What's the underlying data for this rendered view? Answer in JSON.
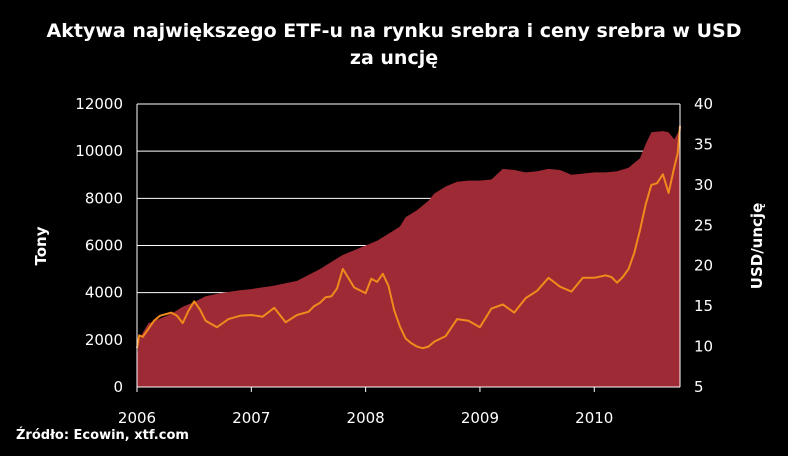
{
  "chart_data": {
    "type": "area",
    "title": "Aktywa największego ETF-u na rynku srebra i ceny srebra w USD za uncję",
    "source": "Źródło: Ecowin, xtf.com",
    "ylabel": "Tony",
    "y2label": "USD/uncję",
    "ylim": [
      0,
      12000
    ],
    "y2lim": [
      5,
      40
    ],
    "xlim": [
      2006.0,
      2010.75
    ],
    "x_ticks": [
      "2006",
      "2007",
      "2008",
      "2009",
      "2010"
    ],
    "y_ticks": [
      "0",
      "2000",
      "4000",
      "6000",
      "8000",
      "10000",
      "12000"
    ],
    "y2_ticks": [
      "5",
      "10",
      "15",
      "20",
      "25",
      "30",
      "35",
      "40"
    ],
    "grid": true,
    "colors": {
      "area": "#9e2a35",
      "line": "#f08a1c",
      "background": "#000000"
    },
    "series": [
      {
        "axis": "left",
        "kind": "area",
        "x": [
          2006.0,
          2006.02,
          2006.05,
          2006.1,
          2006.2,
          2006.3,
          2006.4,
          2006.5,
          2006.6,
          2006.75,
          2006.9,
          2007.0,
          2007.2,
          2007.4,
          2007.6,
          2007.7,
          2007.8,
          2007.9,
          2008.0,
          2008.1,
          2008.2,
          2008.3,
          2008.35,
          2008.45,
          2008.55,
          2008.6,
          2008.7,
          2008.8,
          2008.9,
          2009.0,
          2009.1,
          2009.2,
          2009.3,
          2009.4,
          2009.5,
          2009.6,
          2009.7,
          2009.8,
          2009.9,
          2010.0,
          2010.1,
          2010.2,
          2010.3,
          2010.4,
          2010.45,
          2010.5,
          2010.6,
          2010.65,
          2010.7,
          2010.75
        ],
        "values": [
          1300,
          2000,
          2300,
          2700,
          2900,
          3100,
          3400,
          3600,
          3850,
          4000,
          4100,
          4150,
          4300,
          4500,
          5000,
          5300,
          5600,
          5800,
          6000,
          6200,
          6500,
          6800,
          7200,
          7500,
          7900,
          8200,
          8500,
          8700,
          8750,
          8750,
          8800,
          9250,
          9200,
          9100,
          9150,
          9250,
          9200,
          9000,
          9050,
          9100,
          9100,
          9150,
          9300,
          9700,
          10300,
          10800,
          10850,
          10800,
          10500,
          10950
        ]
      },
      {
        "axis": "right",
        "kind": "line",
        "x": [
          2006.0,
          2006.02,
          2006.05,
          2006.1,
          2006.15,
          2006.2,
          2006.3,
          2006.35,
          2006.4,
          2006.45,
          2006.5,
          2006.55,
          2006.6,
          2006.7,
          2006.8,
          2006.9,
          2007.0,
          2007.1,
          2007.2,
          2007.3,
          2007.4,
          2007.5,
          2007.55,
          2007.6,
          2007.65,
          2007.7,
          2007.75,
          2007.8,
          2007.9,
          2008.0,
          2008.05,
          2008.1,
          2008.15,
          2008.2,
          2008.25,
          2008.3,
          2008.35,
          2008.4,
          2008.45,
          2008.5,
          2008.55,
          2008.6,
          2008.7,
          2008.8,
          2008.9,
          2009.0,
          2009.1,
          2009.2,
          2009.3,
          2009.4,
          2009.5,
          2009.6,
          2009.7,
          2009.8,
          2009.9,
          2010.0,
          2010.1,
          2010.15,
          2010.2,
          2010.25,
          2010.3,
          2010.35,
          2010.4,
          2010.45,
          2010.5,
          2010.55,
          2010.6,
          2010.65,
          2010.7,
          2010.73,
          2010.75
        ],
        "values": [
          9.8,
          11.4,
          11.2,
          12.2,
          13.2,
          13.8,
          14.2,
          13.8,
          12.9,
          14.4,
          15.6,
          14.6,
          13.2,
          12.4,
          13.4,
          13.8,
          13.9,
          13.7,
          14.8,
          13.0,
          13.9,
          14.3,
          15.0,
          15.4,
          16.1,
          16.2,
          17.2,
          19.6,
          17.3,
          16.6,
          18.4,
          18.0,
          19.0,
          17.5,
          14.5,
          12.5,
          11.0,
          10.4,
          10.0,
          9.8,
          10.0,
          10.6,
          11.3,
          13.4,
          13.2,
          12.4,
          14.7,
          15.2,
          14.2,
          16.0,
          16.9,
          18.5,
          17.4,
          16.8,
          18.5,
          18.5,
          18.8,
          18.6,
          17.9,
          18.6,
          19.6,
          21.6,
          24.4,
          27.6,
          30.0,
          30.2,
          31.3,
          29.0,
          32.2,
          33.9,
          37.3
        ]
      }
    ]
  }
}
